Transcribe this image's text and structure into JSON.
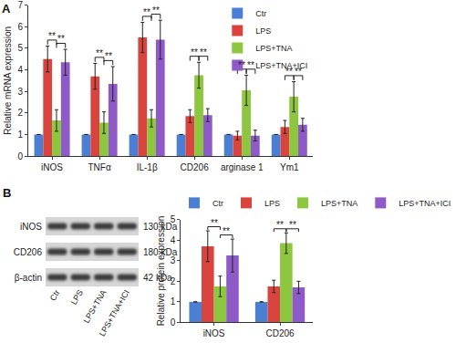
{
  "chart_data": [
    {
      "panel": "A",
      "type": "bar",
      "ylabel": "Relative mRNA expression",
      "categories": [
        "iNOS",
        "TNFα",
        "IL-1β",
        "CD206",
        "arginase 1",
        "Ym1"
      ],
      "ylim": [
        0,
        7
      ],
      "yticks": [
        0,
        1,
        2,
        3,
        4,
        5,
        6,
        7
      ],
      "grid": false,
      "legend": "upper right",
      "series": [
        {
          "name": "Ctr",
          "color": "#4a7fd4",
          "values": [
            1,
            1,
            1,
            1,
            1,
            1
          ],
          "errors": [
            0,
            0,
            0,
            0,
            0,
            0
          ]
        },
        {
          "name": "LPS",
          "color": "#d9443e",
          "values": [
            4.5,
            3.7,
            5.5,
            1.85,
            0.95,
            1.35
          ],
          "errors": [
            0.6,
            0.6,
            0.7,
            0.3,
            0.2,
            0.3
          ]
        },
        {
          "name": "LPS+TNA",
          "color": "#8dc63f",
          "values": [
            1.65,
            1.55,
            1.75,
            3.75,
            3.05,
            2.75
          ],
          "errors": [
            0.5,
            0.5,
            0.4,
            0.6,
            0.7,
            0.7
          ]
        },
        {
          "name": "LPS+TNA+ICI",
          "color": "#8e5ac8",
          "values": [
            4.35,
            3.35,
            5.4,
            1.9,
            0.95,
            1.45
          ],
          "errors": [
            0.6,
            0.8,
            0.9,
            0.3,
            0.25,
            0.3
          ]
        }
      ],
      "significance_label": "**",
      "significance_pairs": [
        [
          "LPS",
          "LPS+TNA"
        ],
        [
          "LPS+TNA",
          "LPS+TNA+ICI"
        ]
      ]
    },
    {
      "type": "bar",
      "ylabel": "Relative protein expression",
      "categories": [
        "iNOS",
        "CD206"
      ],
      "ylim": [
        0,
        5
      ],
      "yticks": [
        0,
        1,
        2,
        3,
        4,
        5
      ],
      "grid": false,
      "legend": "top",
      "series": [
        {
          "name": "Ctr",
          "color": "#4a7fd4",
          "values": [
            1,
            1
          ],
          "errors": [
            0,
            0
          ]
        },
        {
          "name": "LPS",
          "color": "#d9443e",
          "values": [
            3.7,
            1.75
          ],
          "errors": [
            0.75,
            0.3
          ]
        },
        {
          "name": "LPS+TNA",
          "color": "#8dc63f",
          "values": [
            1.75,
            3.85
          ],
          "errors": [
            0.5,
            0.5
          ]
        },
        {
          "name": "LPS+TNA+ICI",
          "color": "#8e5ac8",
          "values": [
            3.25,
            1.7
          ],
          "errors": [
            0.8,
            0.3
          ]
        }
      ],
      "significance_label": "**",
      "significance_pairs": [
        [
          "LPS",
          "LPS+TNA"
        ],
        [
          "LPS+TNA",
          "LPS+TNA+ICI"
        ]
      ]
    }
  ],
  "blot": {
    "panel": "B",
    "rows": [
      {
        "label": "iNOS",
        "size": "130 kDa"
      },
      {
        "label": "CD206",
        "size": "180 kDa"
      },
      {
        "label": "β-actin",
        "size": "42 kDa"
      }
    ],
    "lanes": [
      "Ctr",
      "LPS",
      "LPS+TNA",
      "LPS+TNA+ICI"
    ]
  }
}
